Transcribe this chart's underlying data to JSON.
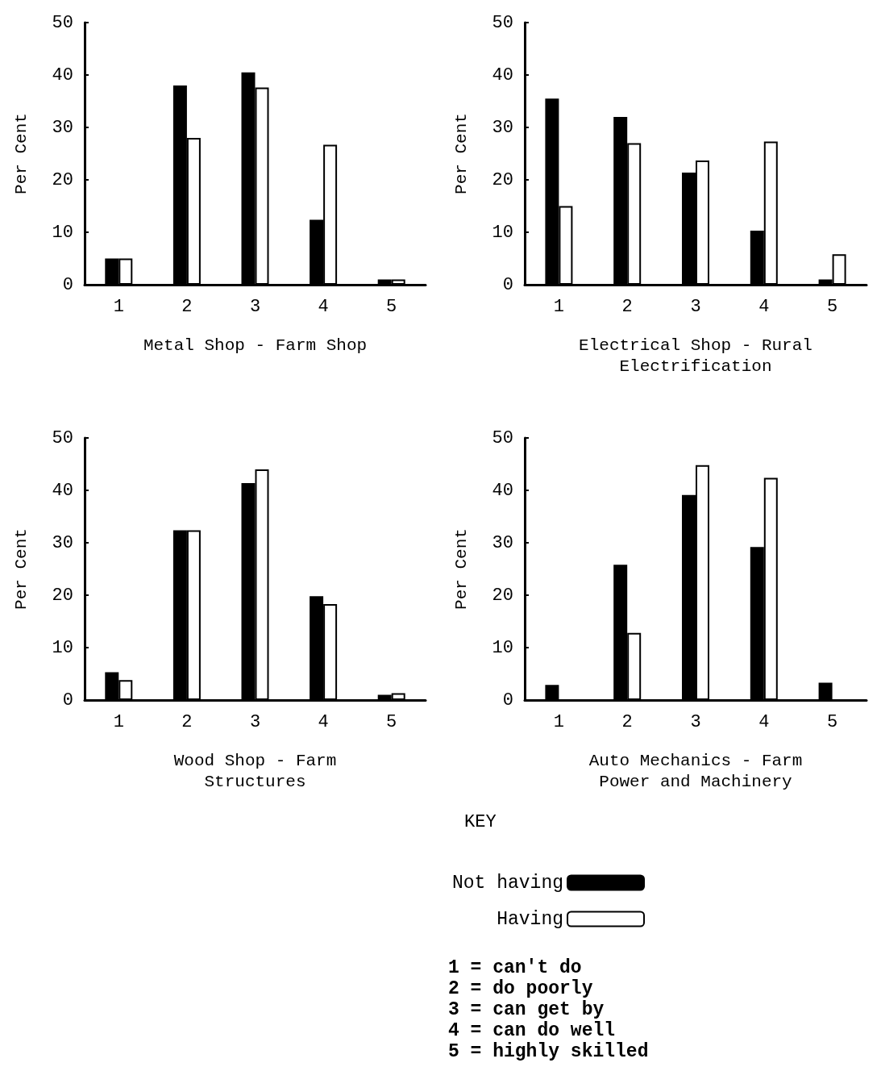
{
  "chart_data": [
    {
      "type": "bar",
      "xlabel": "Metal Shop - Farm Shop",
      "ylabel": "Per Cent",
      "categories": [
        "1",
        "2",
        "3",
        "4",
        "5"
      ],
      "ylim": [
        0,
        50
      ],
      "yticks": [
        0,
        10,
        20,
        30,
        40,
        50
      ],
      "grid": false,
      "legend": false,
      "series": [
        {
          "color": "#000000",
          "values": [
            5,
            38,
            40.5,
            12.4,
            1
          ]
        },
        {
          "color": "#ffffff",
          "values": [
            5,
            28,
            37.6,
            26.7,
            1
          ]
        }
      ]
    },
    {
      "type": "bar",
      "xlabel": "Electrical Shop - Rural Electrification",
      "ylabel": "Per Cent",
      "categories": [
        "1",
        "2",
        "3",
        "4",
        "5"
      ],
      "ylim": [
        0,
        50
      ],
      "yticks": [
        0,
        10,
        20,
        30,
        40,
        50
      ],
      "grid": false,
      "legend": false,
      "series": [
        {
          "color": "#000000",
          "values": [
            35.5,
            32,
            21.4,
            10.3,
            1
          ]
        },
        {
          "color": "#ffffff",
          "values": [
            15,
            27,
            23.7,
            27.3,
            5.8
          ]
        }
      ]
    },
    {
      "type": "bar",
      "xlabel": "Wood Shop - Farm Structures",
      "ylabel": "Per Cent",
      "categories": [
        "1",
        "2",
        "3",
        "4",
        "5"
      ],
      "ylim": [
        0,
        50
      ],
      "yticks": [
        0,
        10,
        20,
        30,
        40,
        50
      ],
      "grid": false,
      "legend": false,
      "series": [
        {
          "color": "#000000",
          "values": [
            5.3,
            32.4,
            41.4,
            19.8,
            1
          ]
        },
        {
          "color": "#ffffff",
          "values": [
            3.8,
            32.4,
            44,
            18.3,
            1.3
          ]
        }
      ]
    },
    {
      "type": "bar",
      "xlabel": "Auto Mechanics - Farm Power and Machinery",
      "ylabel": "Per Cent",
      "categories": [
        "1",
        "2",
        "3",
        "4",
        "5"
      ],
      "ylim": [
        0,
        50
      ],
      "yticks": [
        0,
        10,
        20,
        30,
        40,
        50
      ],
      "grid": false,
      "legend": "bottom",
      "legend_title": "KEY",
      "annotations": [
        "1 = can't do",
        "2 = do poorly",
        "3 = can get by",
        "4 = can do well",
        "5 = highly skilled"
      ],
      "series": [
        {
          "name": "Not having",
          "color": "#000000",
          "values": [
            2.9,
            25.8,
            39.1,
            29.2,
            3.3
          ]
        },
        {
          "name": "Having",
          "color": "#ffffff",
          "values": [
            null,
            12.8,
            44.8,
            42.4,
            null
          ]
        }
      ]
    }
  ]
}
